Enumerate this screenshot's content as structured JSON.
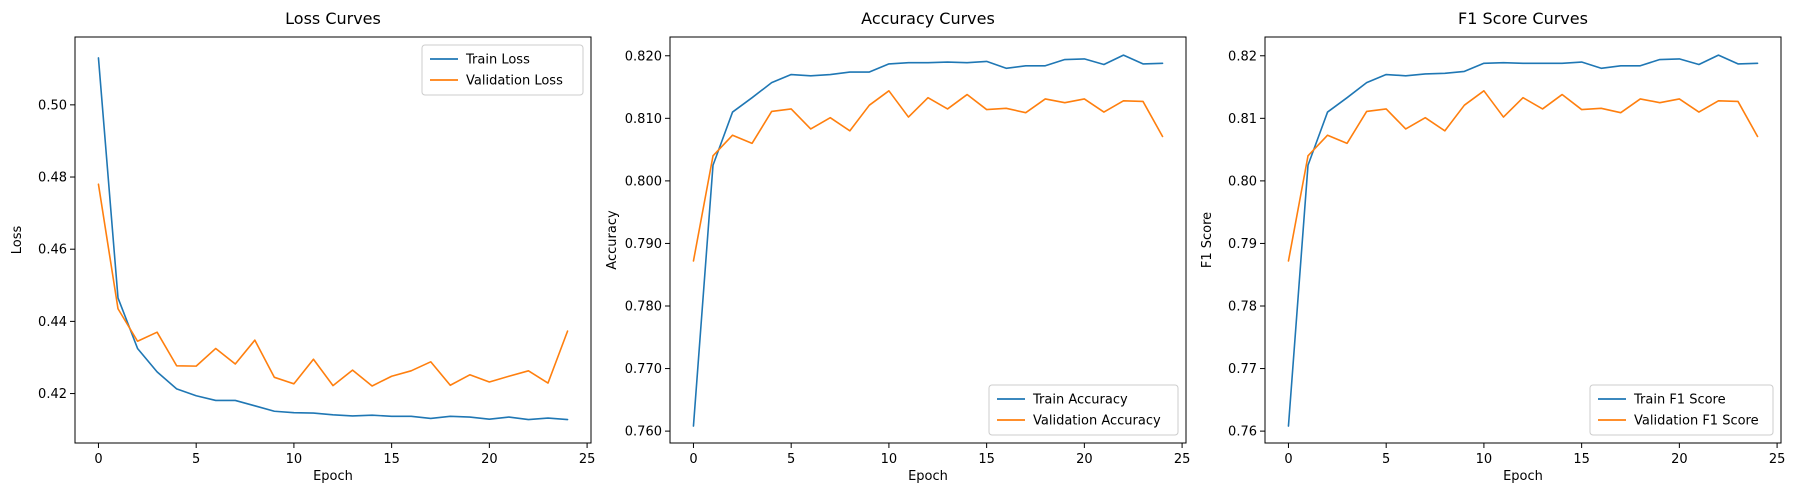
{
  "chart_data": [
    {
      "type": "line",
      "title": "Loss Curves",
      "xlabel": "Epoch",
      "ylabel": "Loss",
      "x": [
        0,
        1,
        2,
        3,
        4,
        5,
        6,
        7,
        8,
        9,
        10,
        11,
        12,
        13,
        14,
        15,
        16,
        17,
        18,
        19,
        20,
        21,
        22,
        23,
        24
      ],
      "xlim": [
        -1.2,
        25.2
      ],
      "ylim": [
        0.4063,
        0.5188
      ],
      "xticks": [
        0,
        5,
        10,
        15,
        20,
        25
      ],
      "yticks": [
        0.42,
        0.44,
        0.46,
        0.48,
        0.5
      ],
      "ytick_labels": [
        "0.42",
        "0.44",
        "0.46",
        "0.48",
        "0.50"
      ],
      "legend_loc": "upper right",
      "grid": false,
      "series": [
        {
          "name": "Train Loss",
          "color": "#1f77b4",
          "values": [
            0.513,
            0.4465,
            0.4325,
            0.426,
            0.4213,
            0.4194,
            0.4181,
            0.4181,
            0.4166,
            0.4151,
            0.4147,
            0.4146,
            0.4141,
            0.4138,
            0.414,
            0.4137,
            0.4137,
            0.4131,
            0.4137,
            0.4135,
            0.4129,
            0.4135,
            0.4128,
            0.4132,
            0.4128
          ]
        },
        {
          "name": "Validation Loss",
          "color": "#ff7f0e",
          "values": [
            0.478,
            0.4435,
            0.4345,
            0.437,
            0.4277,
            0.4276,
            0.4325,
            0.4282,
            0.4348,
            0.4245,
            0.4227,
            0.4295,
            0.4222,
            0.4265,
            0.4221,
            0.4248,
            0.4263,
            0.4288,
            0.4223,
            0.4252,
            0.4232,
            0.4248,
            0.4263,
            0.4229,
            0.4373
          ]
        }
      ]
    },
    {
      "type": "line",
      "title": "Accuracy Curves",
      "xlabel": "Epoch",
      "ylabel": "Accuracy",
      "x": [
        0,
        1,
        2,
        3,
        4,
        5,
        6,
        7,
        8,
        9,
        10,
        11,
        12,
        13,
        14,
        15,
        16,
        17,
        18,
        19,
        20,
        21,
        22,
        23,
        24
      ],
      "xlim": [
        -1.2,
        25.2
      ],
      "ylim": [
        0.7581,
        0.823
      ],
      "xticks": [
        0,
        5,
        10,
        15,
        20,
        25
      ],
      "yticks": [
        0.76,
        0.77,
        0.78,
        0.79,
        0.8,
        0.81,
        0.82
      ],
      "ytick_labels": [
        "0.760",
        "0.770",
        "0.780",
        "0.790",
        "0.800",
        "0.810",
        "0.820"
      ],
      "legend_loc": "lower right",
      "grid": false,
      "series": [
        {
          "name": "Train Accuracy",
          "color": "#1f77b4",
          "values": [
            0.7608,
            0.8025,
            0.811,
            0.8133,
            0.8157,
            0.817,
            0.8168,
            0.817,
            0.8174,
            0.8174,
            0.8187,
            0.8189,
            0.8189,
            0.819,
            0.8189,
            0.8191,
            0.818,
            0.8184,
            0.8184,
            0.8194,
            0.8195,
            0.8186,
            0.8201,
            0.8187,
            0.8188
          ]
        },
        {
          "name": "Validation Accuracy",
          "color": "#ff7f0e",
          "values": [
            0.7872,
            0.804,
            0.8073,
            0.806,
            0.8111,
            0.8115,
            0.8083,
            0.8101,
            0.808,
            0.8121,
            0.8144,
            0.8102,
            0.8133,
            0.8115,
            0.8138,
            0.8114,
            0.8116,
            0.8109,
            0.8131,
            0.8125,
            0.8131,
            0.811,
            0.8128,
            0.8127,
            0.8071
          ]
        }
      ]
    },
    {
      "type": "line",
      "title": "F1 Score Curves",
      "xlabel": "Epoch",
      "ylabel": "F1 Score",
      "x": [
        0,
        1,
        2,
        3,
        4,
        5,
        6,
        7,
        8,
        9,
        10,
        11,
        12,
        13,
        14,
        15,
        16,
        17,
        18,
        19,
        20,
        21,
        22,
        23,
        24
      ],
      "xlim": [
        -1.2,
        25.2
      ],
      "ylim": [
        0.7581,
        0.823
      ],
      "xticks": [
        0,
        5,
        10,
        15,
        20,
        25
      ],
      "yticks": [
        0.76,
        0.77,
        0.78,
        0.79,
        0.8,
        0.81,
        0.82
      ],
      "ytick_labels": [
        "0.76",
        "0.77",
        "0.78",
        "0.79",
        "0.80",
        "0.81",
        "0.82"
      ],
      "legend_loc": "lower right",
      "grid": false,
      "series": [
        {
          "name": "Train F1 Score",
          "color": "#1f77b4",
          "values": [
            0.7608,
            0.8025,
            0.811,
            0.8133,
            0.8157,
            0.817,
            0.8168,
            0.8171,
            0.8172,
            0.8175,
            0.8188,
            0.8189,
            0.8188,
            0.8188,
            0.8188,
            0.819,
            0.818,
            0.8184,
            0.8184,
            0.8194,
            0.8195,
            0.8186,
            0.8201,
            0.8187,
            0.8188
          ]
        },
        {
          "name": "Validation F1 Score",
          "color": "#ff7f0e",
          "values": [
            0.7872,
            0.804,
            0.8073,
            0.806,
            0.8111,
            0.8115,
            0.8083,
            0.8101,
            0.808,
            0.8121,
            0.8144,
            0.8102,
            0.8133,
            0.8115,
            0.8138,
            0.8114,
            0.8116,
            0.8109,
            0.8131,
            0.8125,
            0.8131,
            0.811,
            0.8128,
            0.8127,
            0.8071
          ]
        }
      ]
    }
  ]
}
